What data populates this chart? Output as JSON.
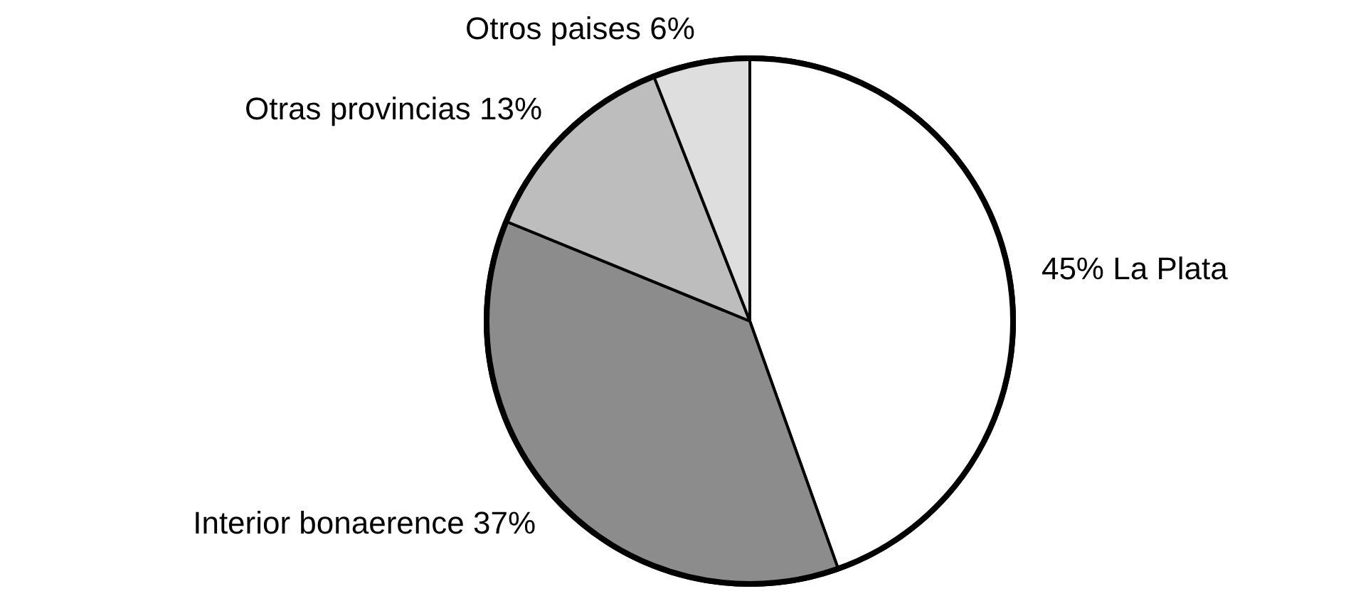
{
  "chart_data": {
    "type": "pie",
    "categories": [
      "La Plata",
      "Interior bonaerence",
      "Otras provincias",
      "Otros paises"
    ],
    "values": [
      45,
      37,
      13,
      6
    ],
    "colors": [
      "#ffffff",
      "#8c8c8c",
      "#bdbdbd",
      "#dedede"
    ],
    "value_labels": [
      "45%",
      "37%",
      "13%",
      "6%"
    ],
    "legend": false
  }
}
